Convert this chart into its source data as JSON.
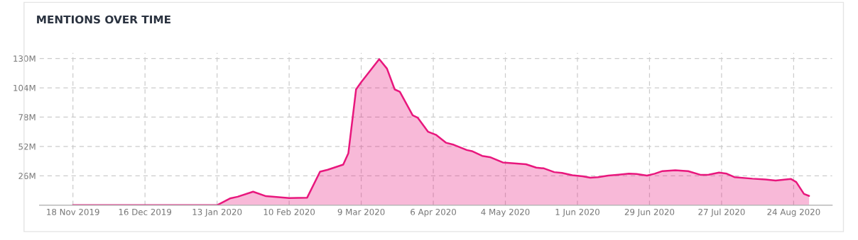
{
  "chart_data": {
    "type": "area",
    "title": "MENTIONS OVER TIME",
    "x": [
      "2019-11-18",
      "2020-01-13",
      "2020-01-18",
      "2020-01-21",
      "2020-01-27",
      "2020-02-01",
      "2020-02-10",
      "2020-02-17",
      "2020-02-22",
      "2020-02-25",
      "2020-03-02",
      "2020-03-04",
      "2020-03-07",
      "2020-03-09",
      "2020-03-16",
      "2020-03-19",
      "2020-03-22",
      "2020-03-24",
      "2020-03-29",
      "2020-03-31",
      "2020-04-04",
      "2020-04-07",
      "2020-04-11",
      "2020-04-14",
      "2020-04-19",
      "2020-04-21",
      "2020-04-25",
      "2020-04-28",
      "2020-05-03",
      "2020-05-12",
      "2020-05-16",
      "2020-05-19",
      "2020-05-23",
      "2020-05-26",
      "2020-05-30",
      "2020-06-03",
      "2020-06-06",
      "2020-06-09",
      "2020-06-13",
      "2020-06-17",
      "2020-06-21",
      "2020-06-24",
      "2020-06-28",
      "2020-07-01",
      "2020-07-04",
      "2020-07-09",
      "2020-07-14",
      "2020-07-19",
      "2020-07-22",
      "2020-07-26",
      "2020-07-29",
      "2020-08-01",
      "2020-08-08",
      "2020-08-13",
      "2020-08-17",
      "2020-08-23",
      "2020-08-25",
      "2020-08-28",
      "2020-08-30"
    ],
    "series": [
      {
        "color": "#e8177d",
        "values": [
          0,
          0,
          6,
          7.5,
          12,
          8,
          6.3,
          6.7,
          29.7,
          31.4,
          36,
          46,
          102.6,
          109,
          129.4,
          121,
          102.6,
          100.5,
          79.6,
          77.4,
          65,
          62.4,
          55.3,
          53.5,
          48.9,
          47.9,
          43.7,
          42.6,
          37.9,
          36.3,
          33.3,
          32.6,
          29.3,
          28.6,
          26.5,
          25.6,
          24.4,
          24.9,
          26.3,
          27,
          27.9,
          27.6,
          26.3,
          27.9,
          30.2,
          31,
          30.2,
          26.8,
          27,
          28.9,
          27.9,
          24.9,
          23.5,
          22.8,
          21.9,
          23.2,
          20.5,
          10,
          8.2
        ]
      }
    ],
    "xlim": [
      "2019-11-05",
      "2020-09-08"
    ],
    "ylim": [
      0,
      135
    ],
    "xticks": [
      {
        "value": "2019-11-18",
        "label": "18 Nov 2019"
      },
      {
        "value": "2019-12-16",
        "label": "16 Dec 2019"
      },
      {
        "value": "2020-01-13",
        "label": "13 Jan 2020"
      },
      {
        "value": "2020-02-10",
        "label": "10 Feb 2020"
      },
      {
        "value": "2020-03-09",
        "label": "9 Mar 2020"
      },
      {
        "value": "2020-04-06",
        "label": "6 Apr 2020"
      },
      {
        "value": "2020-05-04",
        "label": "4 May 2020"
      },
      {
        "value": "2020-06-01",
        "label": "1 Jun 2020"
      },
      {
        "value": "2020-06-29",
        "label": "29 Jun 2020"
      },
      {
        "value": "2020-07-27",
        "label": "27 Jul 2020"
      },
      {
        "value": "2020-08-24",
        "label": "24 Aug 2020"
      }
    ],
    "yticks": [
      {
        "value": 26,
        "label": "26M"
      },
      {
        "value": 52,
        "label": "52M"
      },
      {
        "value": 78,
        "label": "78M"
      },
      {
        "value": 104,
        "label": "104M"
      },
      {
        "value": 130,
        "label": "130M"
      }
    ],
    "grid": true,
    "line_style": "solid",
    "marker": "none"
  }
}
